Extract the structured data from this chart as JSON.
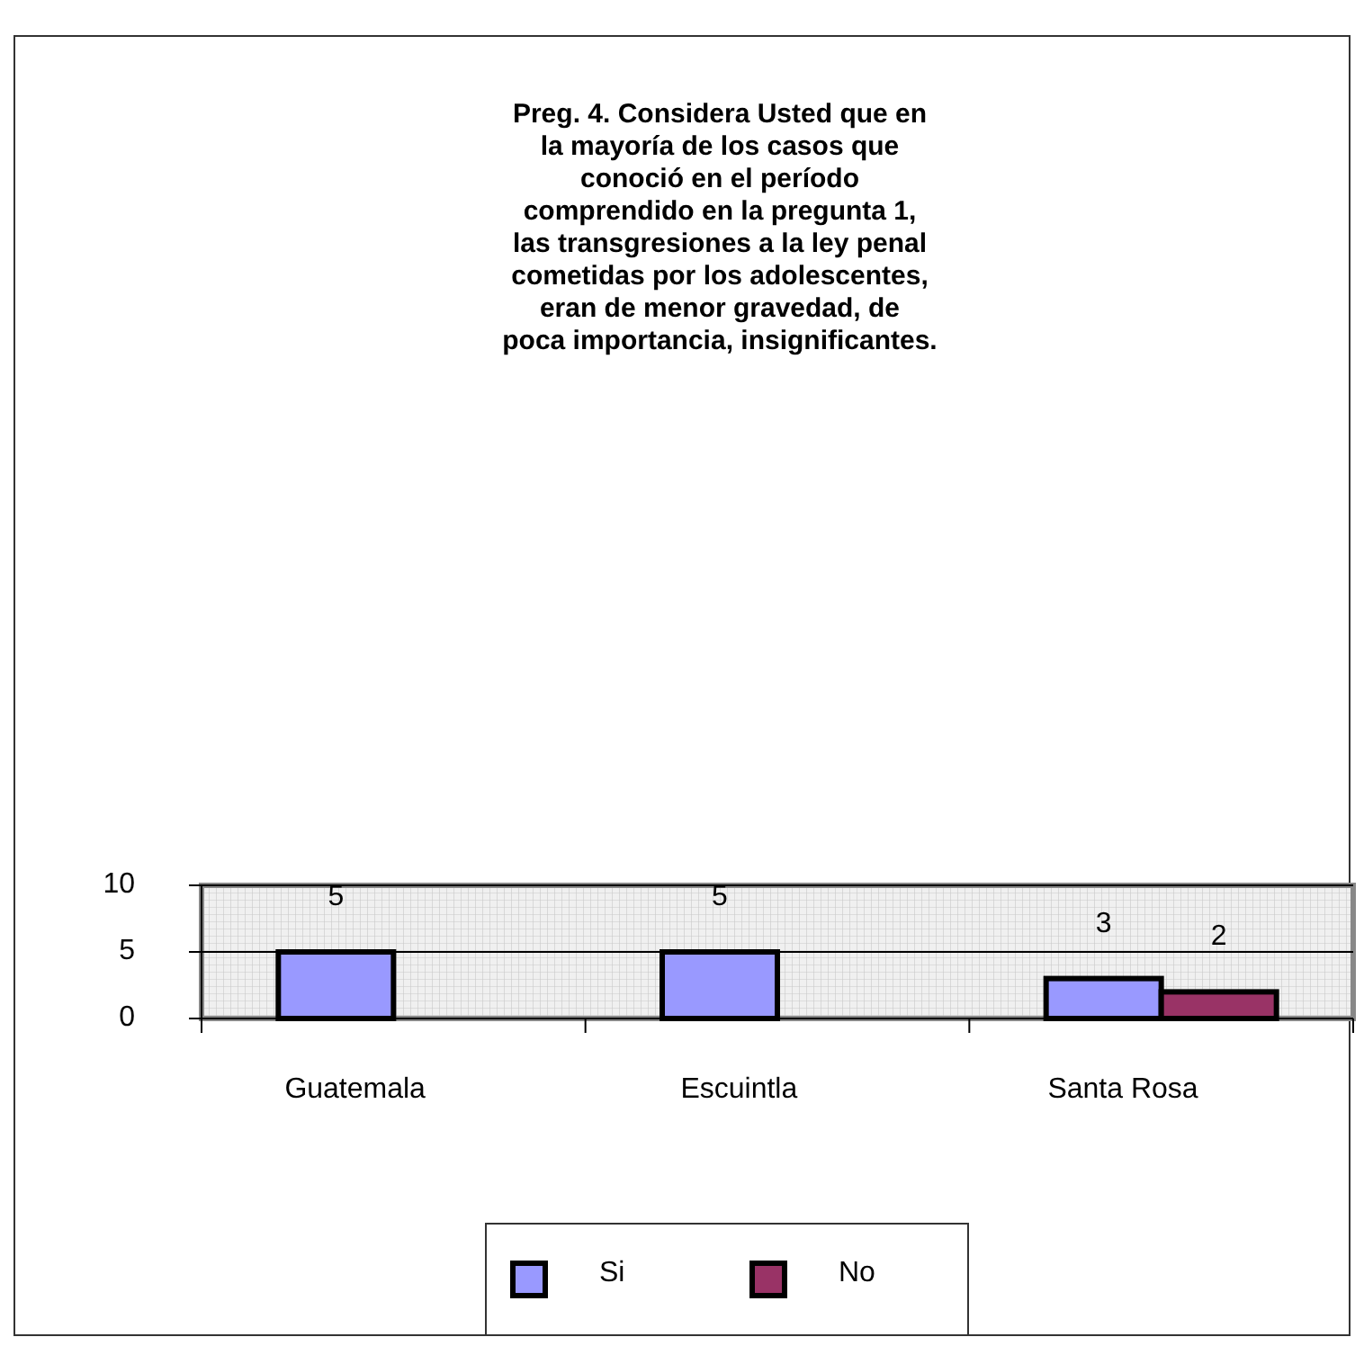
{
  "chart_data": {
    "type": "bar",
    "title": "Preg. 4. Considera Usted que en\nla mayoría  de los casos que\nconoció en el período\ncomprendido en la pregunta 1,\nlas transgresiones a la ley penal\ncometidas por los adolescentes,\neran de menor gravedad, de\npoca importancia,  insignificantes.",
    "categories": [
      "Guatemala",
      "Escuintla",
      "Santa Rosa"
    ],
    "series": [
      {
        "name": "Si",
        "color": "#9999ff",
        "values": [
          5,
          5,
          3
        ]
      },
      {
        "name": "No",
        "color": "#993366",
        "values": [
          null,
          null,
          2
        ]
      }
    ],
    "ylim": [
      0,
      10
    ],
    "yticks": [
      0,
      5,
      10
    ],
    "grid": "y",
    "legend": "bottom",
    "data_labels": true
  }
}
